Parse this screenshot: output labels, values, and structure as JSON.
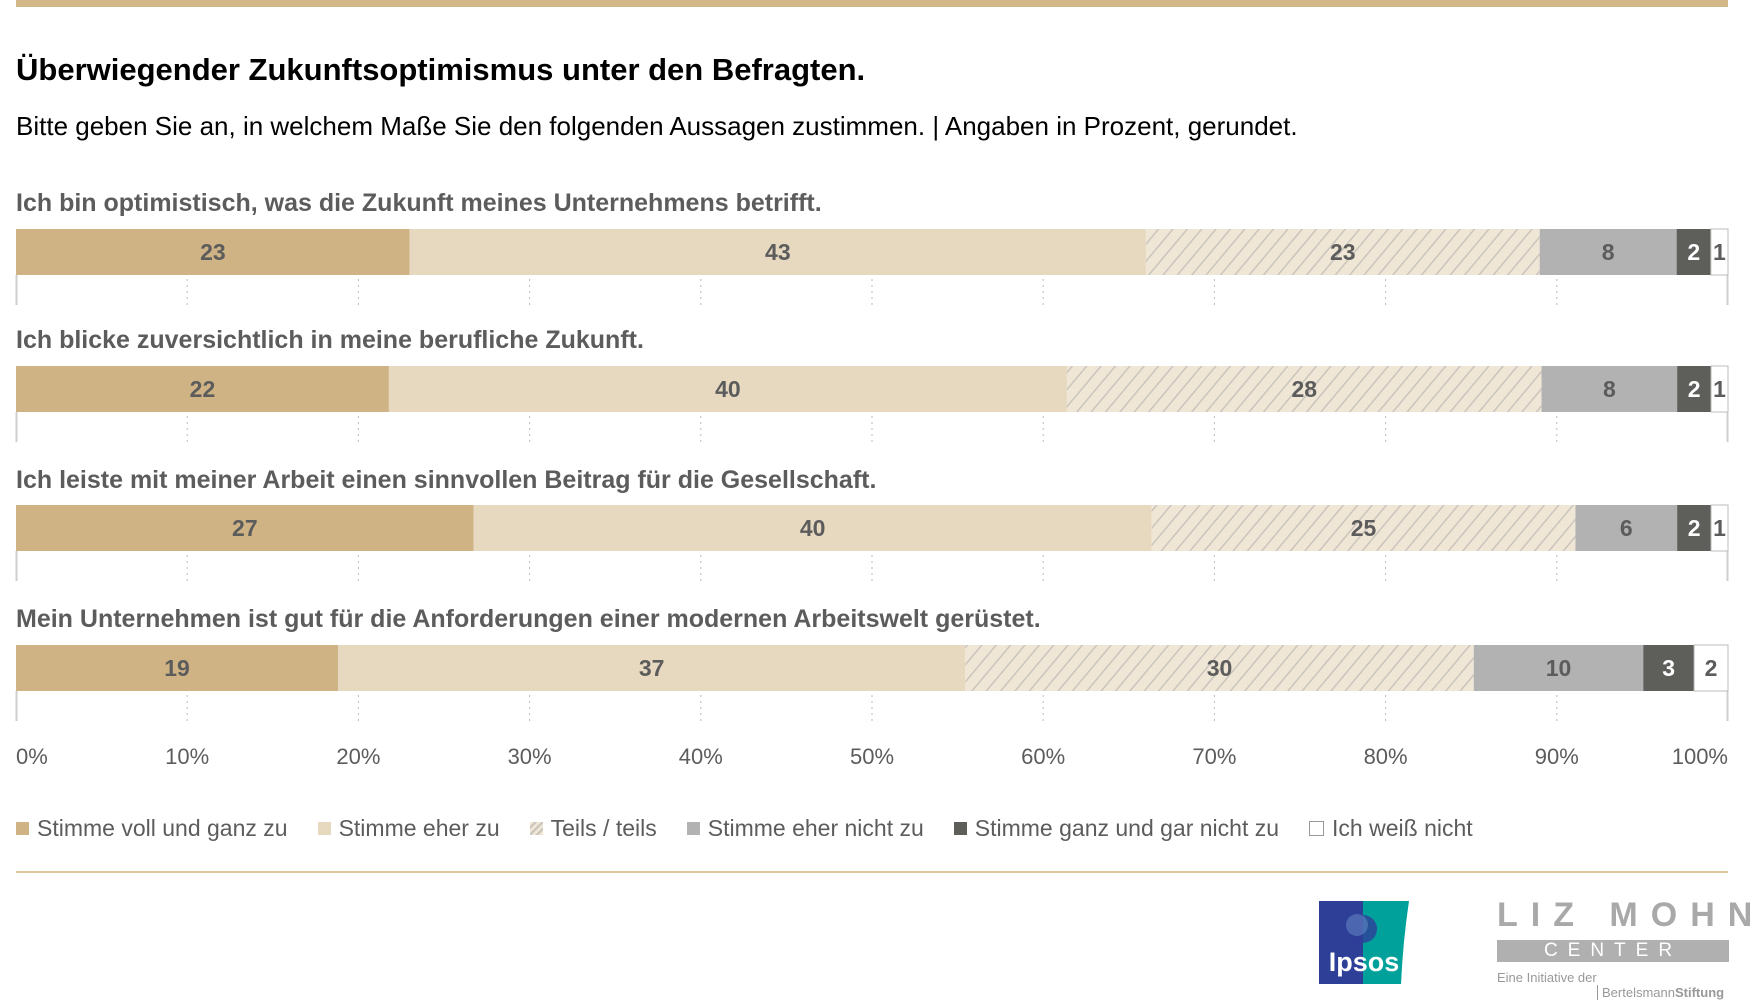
{
  "title": "Überwiegender Zukunftsoptimismus unter den Befragten.",
  "subtitle": "Bitte geben Sie an, in welchem Maße Sie den folgenden Aussagen zustimmen. | Angaben in Prozent, gerundet.",
  "chart_data": {
    "type": "bar",
    "orientation": "horizontal-stacked-100",
    "categories": [
      "Ich bin optimistisch, was die Zukunft meines Unternehmens betrifft.",
      "Ich blicke zuversichtlich in meine berufliche Zukunft.",
      "Ich leiste mit meiner Arbeit einen sinnvollen Beitrag für die Gesellschaft.",
      "Mein Unternehmen ist gut für die Anforderungen einer modernen Arbeitswelt gerüstet."
    ],
    "series": [
      {
        "name": "Stimme voll und ganz zu",
        "color": "#cfb384",
        "values": [
          23,
          22,
          27,
          19
        ]
      },
      {
        "name": "Stimme eher zu",
        "color": "#e6d9c0",
        "values": [
          43,
          40,
          40,
          37
        ]
      },
      {
        "name": "Teils / teils",
        "color": "#f0e6d6",
        "pattern": "hatched",
        "values": [
          23,
          28,
          25,
          30
        ]
      },
      {
        "name": "Stimme eher nicht zu",
        "color": "#b2b2b2",
        "values": [
          8,
          8,
          6,
          10
        ]
      },
      {
        "name": "Stimme ganz und gar nicht zu",
        "color": "#5e5f5b",
        "values": [
          2,
          2,
          2,
          3
        ]
      },
      {
        "name": "Ich weiß nicht",
        "color": "#ffffff",
        "values": [
          1,
          1,
          1,
          2
        ]
      }
    ],
    "xlim": [
      0,
      100
    ],
    "xticks": [
      "0%",
      "10%",
      "20%",
      "30%",
      "40%",
      "50%",
      "60%",
      "70%",
      "80%",
      "90%",
      "100%"
    ],
    "grid": "dotted vertical",
    "legend_placement": "bottom"
  },
  "logos": {
    "ipsos": "Ipsos",
    "lizmohn_title": "LIZ MOHN",
    "lizmohn_center": "CENTER",
    "initiative": "Eine Initiative der",
    "bertelsmann_a": "Bertelsmann",
    "bertelsmann_b": "Stiftung"
  }
}
